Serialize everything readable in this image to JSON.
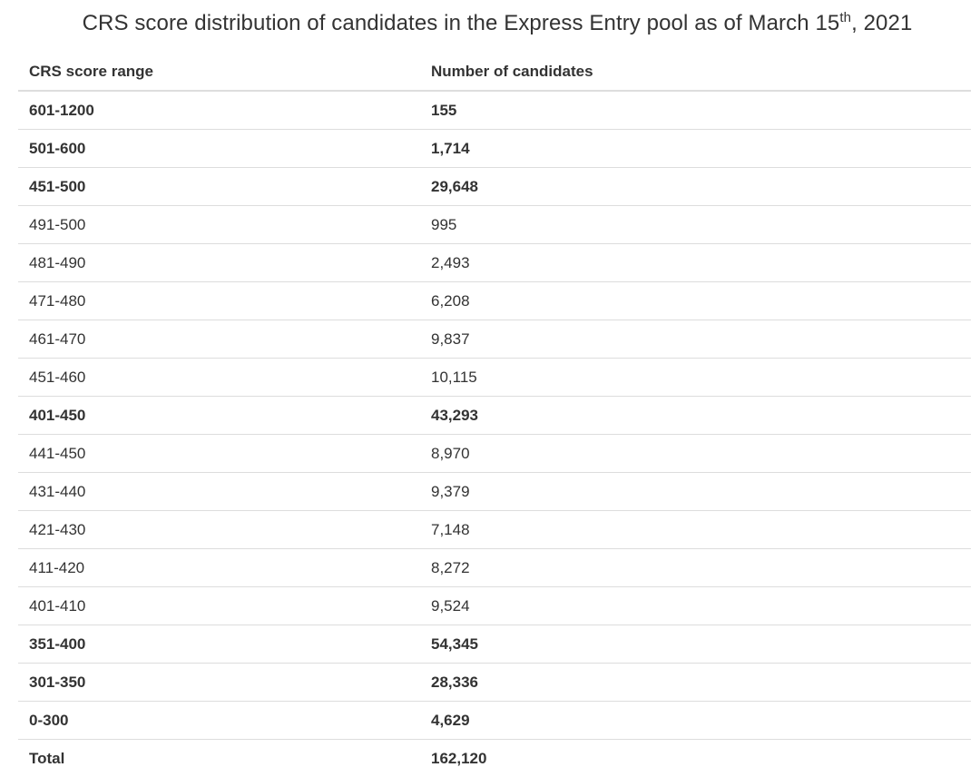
{
  "title": {
    "text_before": "CRS score distribution of candidates in the Express Entry pool as of March 15",
    "superscript": "th",
    "text_after": ", 2021"
  },
  "table": {
    "headers": [
      "CRS score range",
      "Number of candidates"
    ],
    "rows": [
      {
        "range": "601-1200",
        "count": "155",
        "bold": true
      },
      {
        "range": "501-600",
        "count": "1,714",
        "bold": true
      },
      {
        "range": "451-500",
        "count": "29,648",
        "bold": true
      },
      {
        "range": "491-500",
        "count": "995",
        "bold": false
      },
      {
        "range": "481-490",
        "count": "2,493",
        "bold": false
      },
      {
        "range": "471-480",
        "count": "6,208",
        "bold": false
      },
      {
        "range": "461-470",
        "count": "9,837",
        "bold": false
      },
      {
        "range": "451-460",
        "count": "10,115",
        "bold": false
      },
      {
        "range": "401-450",
        "count": "43,293",
        "bold": true
      },
      {
        "range": "441-450",
        "count": "8,970",
        "bold": false
      },
      {
        "range": "431-440",
        "count": "9,379",
        "bold": false
      },
      {
        "range": "421-430",
        "count": "7,148",
        "bold": false
      },
      {
        "range": "411-420",
        "count": "8,272",
        "bold": false
      },
      {
        "range": "401-410",
        "count": "9,524",
        "bold": false
      },
      {
        "range": "351-400",
        "count": "54,345",
        "bold": true
      },
      {
        "range": "301-350",
        "count": "28,336",
        "bold": true
      },
      {
        "range": "0-300",
        "count": "4,629",
        "bold": true
      },
      {
        "range": "Total",
        "count": "162,120",
        "bold": true
      }
    ]
  }
}
